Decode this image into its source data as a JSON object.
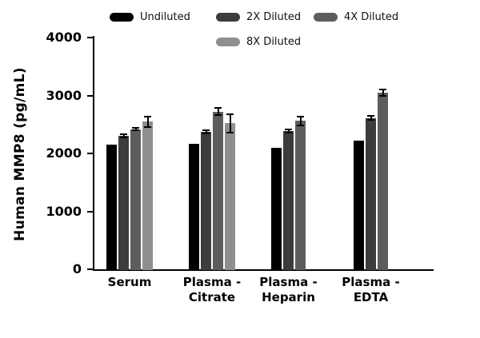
{
  "chart_data": {
    "type": "bar",
    "title": "",
    "ylabel": "Human MMP8 (pg/mL)",
    "xlabel": "",
    "ylim": [
      0,
      4000
    ],
    "yticks": [
      0,
      1000,
      2000,
      3000,
      4000
    ],
    "grid": false,
    "legend_position": "top",
    "error_bar_color": "#000000",
    "categories": [
      "Serum",
      "Plasma -\nCitrate",
      "Plasma -\nHeparin",
      "Plasma -\nEDTA"
    ],
    "series": [
      {
        "name": "Undiluted",
        "color": "#000000",
        "values": [
          2150,
          2160,
          2090,
          2220
        ],
        "errors": [
          0,
          0,
          0,
          0
        ]
      },
      {
        "name": "2X Diluted",
        "color": "#3c3c3c",
        "values": [
          2300,
          2370,
          2390,
          2610
        ],
        "errors": [
          30,
          25,
          25,
          35
        ]
      },
      {
        "name": "4X Diluted",
        "color": "#5d5d5d",
        "values": [
          2420,
          2720,
          2560,
          3050
        ],
        "errors": [
          25,
          60,
          80,
          60
        ]
      },
      {
        "name": "8X Diluted",
        "color": "#8f8f8f",
        "values": [
          2550,
          2520,
          null,
          null
        ],
        "errors": [
          90,
          160,
          null,
          null
        ]
      }
    ]
  }
}
